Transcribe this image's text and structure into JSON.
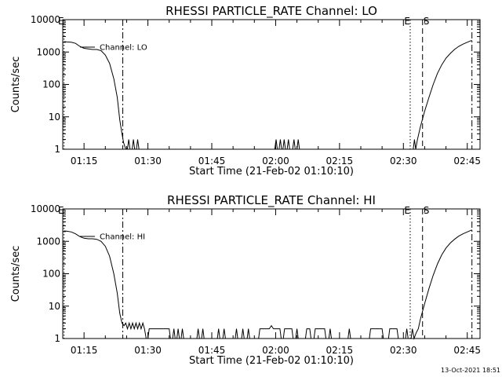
{
  "footer": {
    "timestamp": "13-Oct-2021 18:51"
  },
  "chart_data": [
    {
      "type": "line",
      "title": "RHESSI PARTICLE_RATE Channel: LO",
      "xlabel": "Start Time (21-Feb-02 01:10:10)",
      "ylabel": "Counts/sec",
      "yscale": "log",
      "xlim": [
        10,
        108
      ],
      "ylim": [
        1,
        10000
      ],
      "xticks": [
        {
          "value": 15,
          "label": "01:15"
        },
        {
          "value": 30,
          "label": "01:30"
        },
        {
          "value": 45,
          "label": "01:45"
        },
        {
          "value": 60,
          "label": "02:00"
        },
        {
          "value": 75,
          "label": "02:15"
        },
        {
          "value": 90,
          "label": "02:30"
        },
        {
          "value": 105,
          "label": "02:45"
        }
      ],
      "yticks": [
        {
          "value": 1,
          "label": "1"
        },
        {
          "value": 10,
          "label": "10"
        },
        {
          "value": 100,
          "label": "100"
        },
        {
          "value": 1000,
          "label": "1000"
        },
        {
          "value": 10000,
          "label": "10000"
        }
      ],
      "legend": {
        "label": "Channel: LO",
        "position": "top-left"
      },
      "markers": [
        {
          "x": 10.3,
          "label": "E",
          "style": "dotted"
        },
        {
          "x": 24.1,
          "label": "",
          "style": "dashdot"
        },
        {
          "x": 91.6,
          "label": "E",
          "style": "dotted"
        },
        {
          "x": 94.5,
          "label": "S",
          "style": "dashed"
        },
        {
          "x": 106.1,
          "label": "",
          "style": "dashdot"
        }
      ],
      "series": [
        {
          "name": "",
          "points": [
            [
              10.3,
              2100
            ],
            [
              11,
              2050
            ],
            [
              12,
              2000
            ],
            [
              13,
              1850
            ],
            [
              14,
              1500
            ],
            [
              15,
              1300
            ],
            [
              16,
              1250
            ],
            [
              17,
              1200
            ],
            [
              18,
              1200
            ],
            [
              19,
              1100
            ],
            [
              20,
              800
            ],
            [
              21,
              450
            ],
            [
              22,
              150
            ],
            [
              22.8,
              40
            ],
            [
              23.4,
              8
            ],
            [
              23.9,
              3
            ],
            [
              24.3,
              1.6
            ],
            [
              24.8,
              1
            ],
            [
              25.2,
              1
            ],
            [
              25.5,
              2
            ],
            [
              25.8,
              1
            ],
            [
              26.3,
              1
            ],
            [
              26.6,
              2
            ],
            [
              26.9,
              1
            ],
            [
              27.3,
              1
            ],
            [
              27.6,
              2
            ],
            [
              27.9,
              1
            ],
            [
              28.1,
              1
            ],
            [
              59.8,
              1
            ],
            [
              60.1,
              2
            ],
            [
              60.4,
              1
            ],
            [
              60.8,
              1
            ],
            [
              61.1,
              2
            ],
            [
              61.4,
              1
            ],
            [
              61.7,
              1
            ],
            [
              62.0,
              2
            ],
            [
              62.3,
              1
            ],
            [
              62.7,
              1
            ],
            [
              63.0,
              2
            ],
            [
              63.3,
              1
            ],
            [
              64.0,
              1
            ],
            [
              64.3,
              2
            ],
            [
              64.6,
              1
            ],
            [
              65.0,
              1
            ],
            [
              65.3,
              2
            ],
            [
              65.6,
              1
            ],
            [
              92.3,
              1
            ],
            [
              92.6,
              2
            ],
            [
              92.9,
              1
            ],
            [
              93.3,
              2
            ],
            [
              94.0,
              5
            ],
            [
              95,
              15
            ],
            [
              96,
              40
            ],
            [
              97,
              100
            ],
            [
              98,
              220
            ],
            [
              99,
              400
            ],
            [
              100,
              650
            ],
            [
              101,
              900
            ],
            [
              102,
              1200
            ],
            [
              103,
              1500
            ],
            [
              104,
              1750
            ],
            [
              105,
              2000
            ],
            [
              106.1,
              2300
            ]
          ]
        }
      ]
    },
    {
      "type": "line",
      "title": "RHESSI PARTICLE_RATE Channel: HI",
      "xlabel": "Start Time (21-Feb-02 01:10:10)",
      "ylabel": "Counts/sec",
      "yscale": "log",
      "xlim": [
        10,
        108
      ],
      "ylim": [
        1,
        10000
      ],
      "xticks": [
        {
          "value": 15,
          "label": "01:15"
        },
        {
          "value": 30,
          "label": "01:30"
        },
        {
          "value": 45,
          "label": "01:45"
        },
        {
          "value": 60,
          "label": "02:00"
        },
        {
          "value": 75,
          "label": "02:15"
        },
        {
          "value": 90,
          "label": "02:30"
        },
        {
          "value": 105,
          "label": "02:45"
        }
      ],
      "yticks": [
        {
          "value": 1,
          "label": "1"
        },
        {
          "value": 10,
          "label": "10"
        },
        {
          "value": 100,
          "label": "100"
        },
        {
          "value": 1000,
          "label": "1000"
        },
        {
          "value": 10000,
          "label": "10000"
        }
      ],
      "legend": {
        "label": "Channel: HI",
        "position": "top-left"
      },
      "markers": [
        {
          "x": 10.3,
          "label": "E",
          "style": "dotted"
        },
        {
          "x": 24.1,
          "label": "",
          "style": "dashdot"
        },
        {
          "x": 91.6,
          "label": "E",
          "style": "dotted"
        },
        {
          "x": 94.5,
          "label": "S",
          "style": "dashed"
        },
        {
          "x": 106.1,
          "label": "",
          "style": "dashdot"
        }
      ],
      "series": [
        {
          "name": "",
          "points": [
            [
              10.3,
              2100
            ],
            [
              11,
              2050
            ],
            [
              12,
              1950
            ],
            [
              13,
              1700
            ],
            [
              14,
              1400
            ],
            [
              15,
              1250
            ],
            [
              16,
              1200
            ],
            [
              17,
              1200
            ],
            [
              18,
              1150
            ],
            [
              19,
              1000
            ],
            [
              20,
              700
            ],
            [
              21,
              350
            ],
            [
              22,
              100
            ],
            [
              22.8,
              25
            ],
            [
              23.4,
              6
            ],
            [
              23.9,
              3
            ],
            [
              24.4,
              2.5
            ],
            [
              24.8,
              3
            ],
            [
              25.2,
              2
            ],
            [
              25.6,
              3
            ],
            [
              26.0,
              2
            ],
            [
              26.4,
              3
            ],
            [
              26.8,
              2
            ],
            [
              27.2,
              3
            ],
            [
              27.6,
              2
            ],
            [
              28.0,
              3
            ],
            [
              28.4,
              2
            ],
            [
              28.8,
              3
            ],
            [
              29.2,
              2
            ],
            [
              29.6,
              1
            ],
            [
              30,
              1
            ],
            [
              30.3,
              2
            ],
            [
              35,
              2
            ],
            [
              35.3,
              1
            ],
            [
              35.8,
              1
            ],
            [
              36.1,
              2
            ],
            [
              36.4,
              1
            ],
            [
              36.8,
              1
            ],
            [
              37.1,
              2
            ],
            [
              37.4,
              1
            ],
            [
              37.8,
              1
            ],
            [
              38.1,
              2
            ],
            [
              38.4,
              1
            ],
            [
              41.5,
              1
            ],
            [
              41.8,
              2
            ],
            [
              42.1,
              1
            ],
            [
              42.6,
              1
            ],
            [
              42.9,
              2
            ],
            [
              43.2,
              1
            ],
            [
              46.3,
              1
            ],
            [
              46.6,
              2
            ],
            [
              46.9,
              1
            ],
            [
              47.6,
              1
            ],
            [
              47.9,
              2
            ],
            [
              48.2,
              1
            ],
            [
              50.5,
              1
            ],
            [
              50.8,
              2
            ],
            [
              51.1,
              1
            ],
            [
              52,
              1
            ],
            [
              52.3,
              2
            ],
            [
              52.6,
              1
            ],
            [
              53.3,
              1
            ],
            [
              53.6,
              2
            ],
            [
              53.9,
              1
            ],
            [
              56,
              1
            ],
            [
              56.3,
              2
            ],
            [
              58.5,
              2
            ],
            [
              59.0,
              2.5
            ],
            [
              59.5,
              2
            ],
            [
              61,
              2
            ],
            [
              61.3,
              1
            ],
            [
              61.8,
              1
            ],
            [
              62.1,
              2
            ],
            [
              63.8,
              2
            ],
            [
              64.1,
              1
            ],
            [
              64.7,
              1
            ],
            [
              65,
              2
            ],
            [
              65.3,
              1
            ],
            [
              67,
              1
            ],
            [
              67.3,
              2
            ],
            [
              68,
              2
            ],
            [
              68.3,
              1
            ],
            [
              69,
              1
            ],
            [
              69.3,
              2
            ],
            [
              71.5,
              2
            ],
            [
              71.8,
              1
            ],
            [
              72.5,
              1
            ],
            [
              72.8,
              2
            ],
            [
              73.1,
              1
            ],
            [
              77,
              1
            ],
            [
              77.3,
              2
            ],
            [
              77.6,
              1
            ],
            [
              82,
              1
            ],
            [
              82.3,
              2
            ],
            [
              85,
              2
            ],
            [
              85.3,
              1
            ],
            [
              86.5,
              1
            ],
            [
              86.8,
              2
            ],
            [
              88.5,
              2
            ],
            [
              88.8,
              1
            ],
            [
              90.5,
              1
            ],
            [
              90.8,
              2
            ],
            [
              91.1,
              1
            ],
            [
              91.8,
              1
            ],
            [
              92.1,
              2
            ],
            [
              92.5,
              1
            ],
            [
              93.0,
              1.5
            ],
            [
              93.5,
              2
            ],
            [
              94,
              4
            ],
            [
              95,
              12
            ],
            [
              96,
              35
            ],
            [
              97,
              90
            ],
            [
              98,
              200
            ],
            [
              99,
              380
            ],
            [
              100,
              620
            ],
            [
              101,
              880
            ],
            [
              102,
              1150
            ],
            [
              103,
              1450
            ],
            [
              104,
              1700
            ],
            [
              105,
              1950
            ],
            [
              106.1,
              2250
            ]
          ]
        }
      ]
    }
  ]
}
